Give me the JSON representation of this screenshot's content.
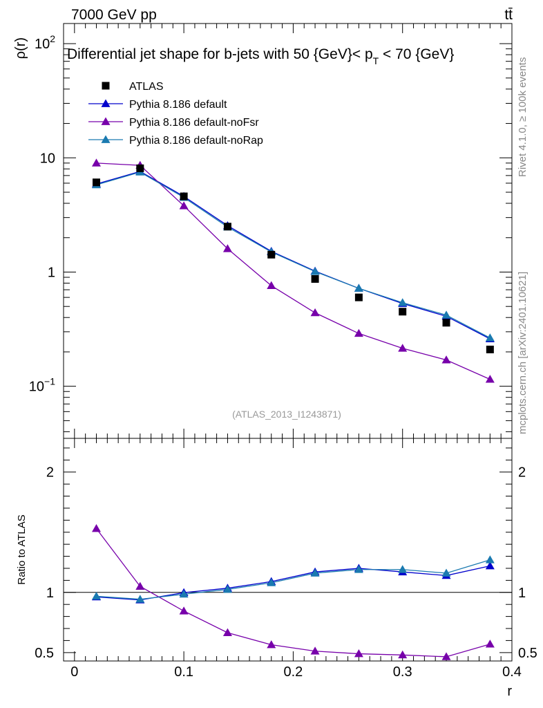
{
  "header": {
    "energy_label": "7000 GeV pp",
    "process_label": "tt̄"
  },
  "side": {
    "rivet_label": "Rivet 4.1.0, ≥ 100k events",
    "mcplots_label": "mcplots.cern.ch [arXiv:2401.10621]"
  },
  "watermark": "(ATLAS_2013_I1243871)",
  "chart_data": [
    {
      "type": "line",
      "title": "Differential jet shape for b-jets with 50 {GeV}< p_T < 70 {GeV}",
      "title_parts": {
        "pre": "Differential jet shape for b-jets with 50 {GeV}< p",
        "sub": "T",
        "post": " < 70 {GeV}"
      },
      "xlabel": "",
      "ylabel": "ρ(r)",
      "yscale": "log",
      "xlim": [
        -0.01,
        0.4
      ],
      "ylim": [
        0.035,
        150
      ],
      "y_ticks": [
        {
          "value": 0.1,
          "label": "10",
          "exp": "−1"
        },
        {
          "value": 1,
          "label": "1",
          "exp": ""
        },
        {
          "value": 10,
          "label": "10",
          "exp": ""
        },
        {
          "value": 100,
          "label": "10",
          "exp": "2"
        }
      ],
      "legend": [
        {
          "name": "ATLAS",
          "color": "#000000",
          "marker": "square"
        },
        {
          "name": "Pythia 8.186 default",
          "color": "#0000cc",
          "marker": "triangle"
        },
        {
          "name": "Pythia 8.186 default-noFsr",
          "color": "#7700aa",
          "marker": "triangle"
        },
        {
          "name": "Pythia 8.186 default-noRap",
          "color": "#1a7ab0",
          "marker": "triangle"
        }
      ],
      "x": [
        0.02,
        0.06,
        0.1,
        0.14,
        0.18,
        0.22,
        0.26,
        0.3,
        0.34,
        0.38
      ],
      "data": {
        "name": "ATLAS",
        "values": [
          6.1,
          8.1,
          4.6,
          2.5,
          1.42,
          0.87,
          0.6,
          0.45,
          0.36,
          0.21
        ]
      },
      "series": [
        {
          "name": "Pythia 8.186 default",
          "color": "#0000cc",
          "values": [
            5.9,
            7.6,
            4.6,
            2.55,
            1.52,
            1.02,
            0.72,
            0.53,
            0.41,
            0.26
          ]
        },
        {
          "name": "Pythia 8.186 default-noFsr",
          "color": "#7700aa",
          "values": [
            9.0,
            8.6,
            3.8,
            1.6,
            0.76,
            0.44,
            0.29,
            0.215,
            0.17,
            0.115
          ]
        },
        {
          "name": "Pythia 8.186 default-noRap",
          "color": "#1a7ab0",
          "values": [
            5.8,
            7.5,
            4.5,
            2.48,
            1.5,
            1.01,
            0.72,
            0.54,
            0.42,
            0.265
          ]
        }
      ]
    },
    {
      "type": "line",
      "title": "",
      "xlabel": "r",
      "ylabel": "Ratio to ATLAS",
      "xlim": [
        -0.01,
        0.4
      ],
      "ylim": [
        0.43,
        2.28
      ],
      "x_ticks": [
        {
          "value": 0,
          "label": "0"
        },
        {
          "value": 0.1,
          "label": "0.1"
        },
        {
          "value": 0.2,
          "label": "0.2"
        },
        {
          "value": 0.3,
          "label": "0.3"
        },
        {
          "value": 0.4,
          "label": "0.4"
        }
      ],
      "y_ticks": [
        {
          "value": 0.5,
          "label": "0.5"
        },
        {
          "value": 1,
          "label": "1"
        },
        {
          "value": 2,
          "label": "2"
        }
      ],
      "reference_line": 1,
      "x": [
        0.02,
        0.06,
        0.1,
        0.14,
        0.18,
        0.22,
        0.26,
        0.3,
        0.34,
        0.38
      ],
      "series": [
        {
          "name": "Pythia 8.186 default",
          "color": "#0000cc",
          "values": [
            0.962,
            0.937,
            0.998,
            1.035,
            1.09,
            1.17,
            1.2,
            1.17,
            1.14,
            1.22
          ]
        },
        {
          "name": "Pythia 8.186 default-noFsr",
          "color": "#7700aa",
          "values": [
            1.53,
            1.05,
            0.845,
            0.665,
            0.565,
            0.512,
            0.49,
            0.48,
            0.465,
            0.57
          ]
        },
        {
          "name": "Pythia 8.186 default-noRap",
          "color": "#1a7ab0",
          "values": [
            0.968,
            0.943,
            0.985,
            1.025,
            1.08,
            1.16,
            1.19,
            1.19,
            1.16,
            1.27
          ]
        }
      ]
    }
  ]
}
